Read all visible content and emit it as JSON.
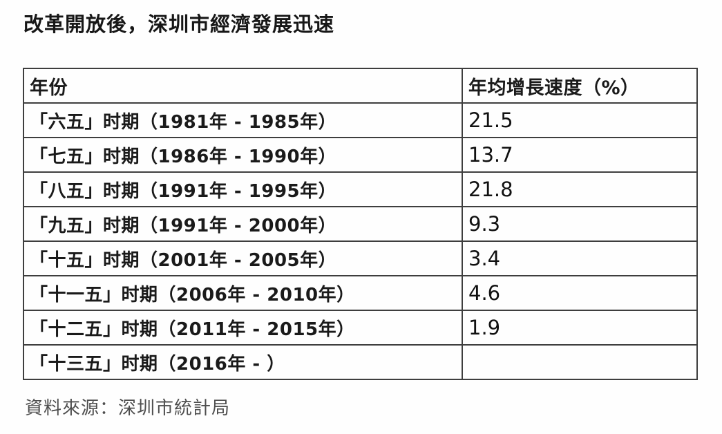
{
  "title": "改革開放後，深圳市經濟發展迅速",
  "table": {
    "headers": [
      "年份",
      "年均增長速度（%）"
    ],
    "rows": [
      {
        "period": "「六五」时期（1981年 - 1985年）",
        "value": "21.5"
      },
      {
        "period": "「七五」时期（1986年 - 1990年）",
        "value": "13.7"
      },
      {
        "period": "「八五」时期（1991年 - 1995年）",
        "value": "21.8"
      },
      {
        "period": "「九五」时期（1991年 - 2000年）",
        "value": "9.3"
      },
      {
        "period": "「十五」时期（2001年 - 2005年）",
        "value": "3.4"
      },
      {
        "period": "「十一五」时期（2006年 - 2010年）",
        "value": "4.6"
      },
      {
        "period": "「十二五」时期（2011年 - 2015年）",
        "value": "1.9"
      },
      {
        "period": "「十三五」时期（2016年 - ）",
        "value": ""
      }
    ]
  },
  "source": "資料來源：深圳市統計局",
  "chart_data": {
    "type": "table",
    "title": "改革開放後，深圳市經濟發展迅速",
    "columns": [
      "年份",
      "年均增長速度（%）"
    ],
    "categories": [
      "「六五」时期（1981年 - 1985年）",
      "「七五」时期（1986年 - 1990年）",
      "「八五」时期（1991年 - 1995年）",
      "「九五」时期（1991年 - 2000年）",
      "「十五」时期（2001年 - 2005年）",
      "「十一五」时期（2006年 - 2010年）",
      "「十二五」时期（2011年 - 2015年）",
      "「十三五」时期（2016年 - ）"
    ],
    "values": [
      21.5,
      13.7,
      21.8,
      9.3,
      3.4,
      4.6,
      1.9,
      null
    ],
    "value_unit": "%",
    "source": "資料來源：深圳市統計局"
  }
}
